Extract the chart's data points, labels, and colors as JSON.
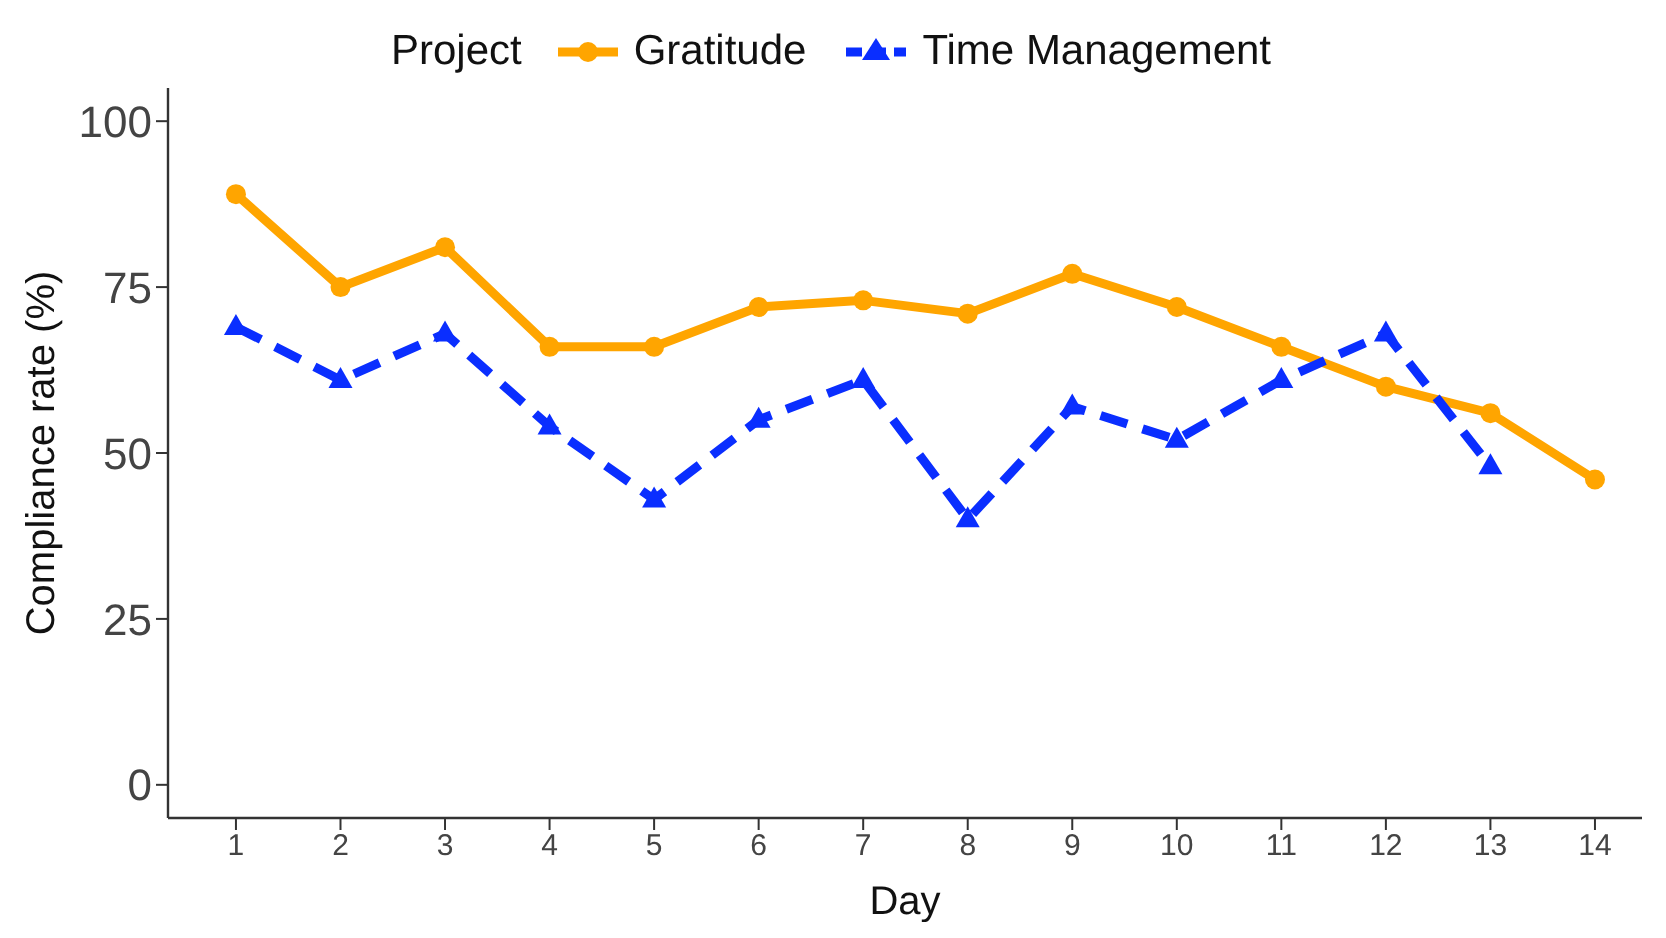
{
  "chart_data": {
    "type": "line",
    "xlabel": "Day",
    "ylabel": "Compliance rate (%)",
    "legend_title": "Project",
    "legend": "top",
    "x": [
      1,
      2,
      3,
      4,
      5,
      6,
      7,
      8,
      9,
      10,
      11,
      12,
      13,
      14
    ],
    "xlim": [
      0.35,
      14.45
    ],
    "xticks": [
      1,
      2,
      3,
      4,
      5,
      6,
      7,
      8,
      9,
      10,
      11,
      12,
      13,
      14
    ],
    "ylim": [
      -5,
      105
    ],
    "yticks": [
      0,
      25,
      50,
      75,
      100
    ],
    "series": [
      {
        "name": "Gratitude",
        "color": "#ffa500",
        "marker": "circle",
        "line_style": "solid",
        "values": [
          89,
          75,
          81,
          66,
          66,
          72,
          73,
          71,
          77,
          72,
          66,
          60,
          56,
          46
        ]
      },
      {
        "name": "Time Management",
        "color": "#0a2eff",
        "marker": "triangle",
        "line_style": "dashed",
        "values": [
          69,
          61,
          68,
          54,
          43,
          55,
          61,
          40,
          57,
          52,
          61,
          68,
          48,
          null
        ]
      }
    ]
  }
}
